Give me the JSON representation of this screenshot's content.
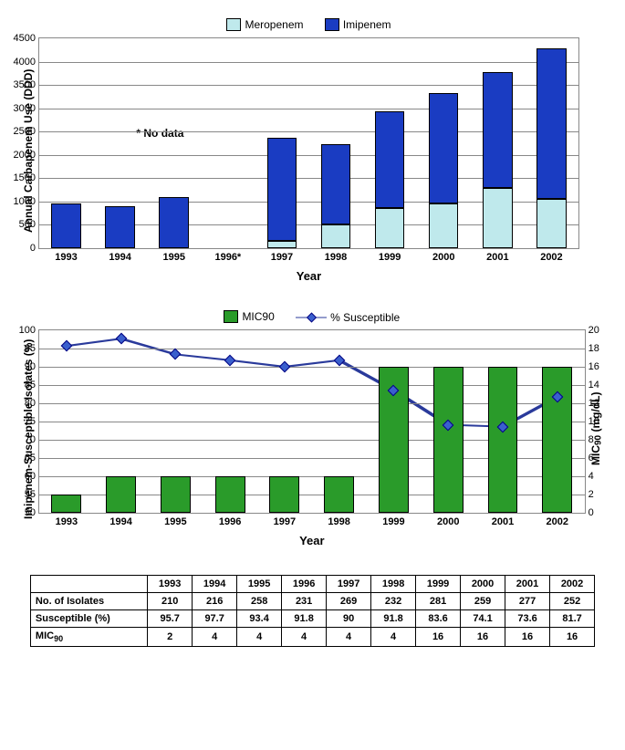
{
  "chart1": {
    "type": "stacked-bar",
    "years": [
      "1993",
      "1994",
      "1995",
      "1996*",
      "1997",
      "1998",
      "1999",
      "2000",
      "2001",
      "2002"
    ],
    "series": {
      "Meropenem": {
        "label": "Meropenem",
        "color": "#bfe9ec",
        "values": [
          0,
          0,
          0,
          null,
          150,
          500,
          870,
          960,
          1300,
          1050
        ]
      },
      "Imipenem": {
        "label": "Imipenem",
        "color": "#1a3cc2",
        "values": [
          960,
          910,
          1090,
          null,
          2210,
          1740,
          2060,
          2370,
          2470,
          3230
        ]
      }
    },
    "annotation": "* No data",
    "yaxis": {
      "label": "Annual Carbapenem Use\n(DDD)",
      "min": 0,
      "max": 4500,
      "step": 500
    },
    "xaxis_title": "Year",
    "grid_color": "#888",
    "bar_width": 0.55
  },
  "chart2": {
    "type": "bar+line",
    "years": [
      "1993",
      "1994",
      "1995",
      "1996",
      "1997",
      "1998",
      "1999",
      "2000",
      "2001",
      "2002"
    ],
    "bars": {
      "label": "MIC90",
      "color": "#2a9b2a",
      "values": [
        2,
        4,
        4,
        4,
        4,
        4,
        16,
        16,
        16,
        16
      ]
    },
    "line": {
      "label": "% Susceptible",
      "color": "#2a3a9b",
      "marker": "diamond",
      "values": [
        95.7,
        97.7,
        93.4,
        91.8,
        90,
        91.8,
        83.6,
        74.1,
        73.6,
        81.7
      ]
    },
    "yaxis_left": {
      "label": "Imipenem-Susceptible Isolates\n(%)",
      "min": 50,
      "max": 100,
      "step": 5
    },
    "yaxis_right": {
      "label": "MIC90 (mg/dL)",
      "sub": "90",
      "min": 0,
      "max": 20,
      "step": 2
    },
    "xaxis_title": "Year",
    "bar_width": 0.55
  },
  "table": {
    "columns": [
      "",
      "1993",
      "1994",
      "1995",
      "1996",
      "1997",
      "1998",
      "1999",
      "2000",
      "2001",
      "2002"
    ],
    "rows": [
      {
        "label": "No. of Isolates",
        "values": [
          "210",
          "216",
          "258",
          "231",
          "269",
          "232",
          "281",
          "259",
          "277",
          "252"
        ]
      },
      {
        "label": "Susceptible (%)",
        "values": [
          "95.7",
          "97.7",
          "93.4",
          "91.8",
          "90",
          "91.8",
          "83.6",
          "74.1",
          "73.6",
          "81.7"
        ]
      },
      {
        "label": "MIC90",
        "sub": "90",
        "values": [
          "2",
          "4",
          "4",
          "4",
          "4",
          "4",
          "16",
          "16",
          "16",
          "16"
        ]
      }
    ]
  }
}
